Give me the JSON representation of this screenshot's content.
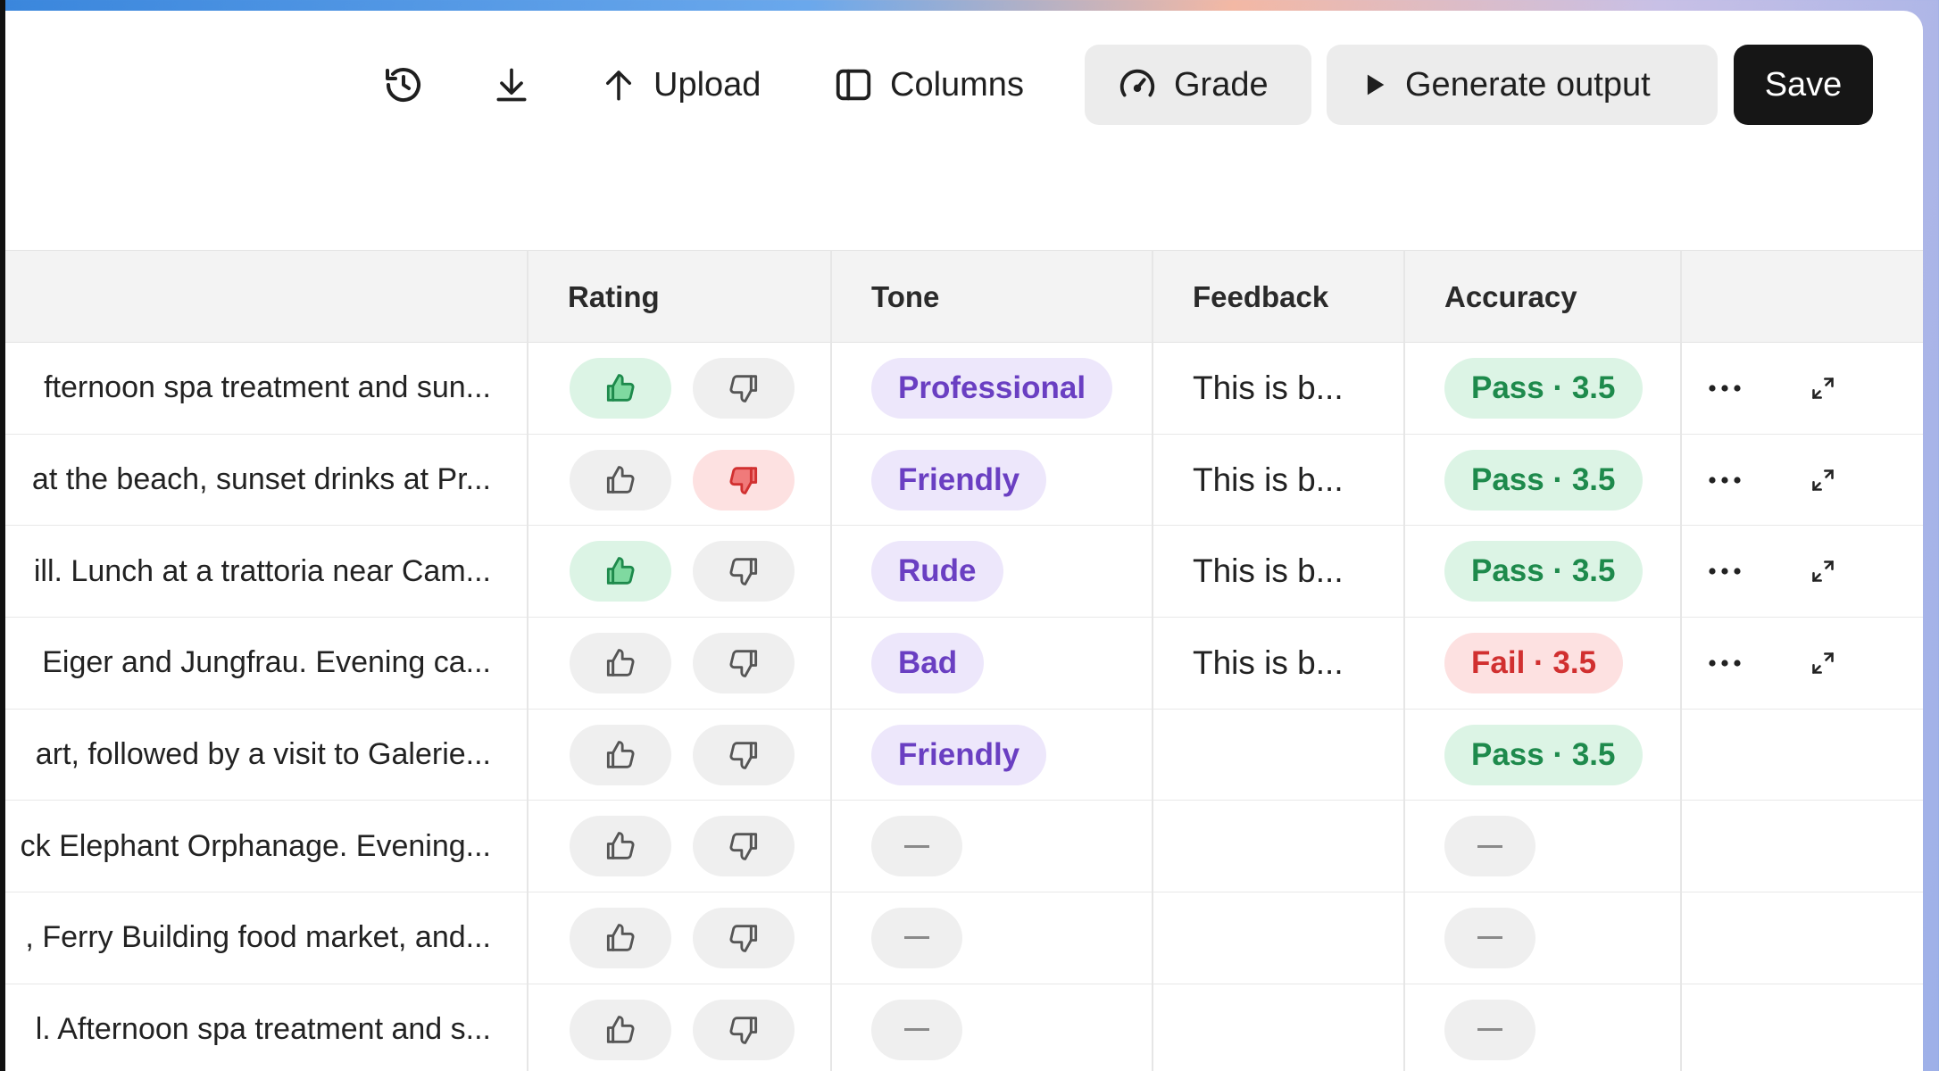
{
  "toolbar": {
    "history_icon": "history-icon",
    "download_icon": "download-icon",
    "upload_label": "Upload",
    "columns_label": "Columns",
    "grade_label": "Grade",
    "generate_label": "Generate output",
    "save_label": "Save"
  },
  "table": {
    "headers": {
      "rating": "Rating",
      "tone": "Tone",
      "feedback": "Feedback",
      "accuracy": "Accuracy"
    },
    "rows": [
      {
        "description": "fternoon spa treatment and sun...",
        "rating": "up",
        "tone": "Professional",
        "feedback": "This is b...",
        "accuracy": "Pass · 3.5",
        "accuracy_status": "pass",
        "actions": true
      },
      {
        "description": "at the beach, sunset drinks at Pr...",
        "rating": "down",
        "tone": "Friendly",
        "feedback": "This is b...",
        "accuracy": "Pass · 3.5",
        "accuracy_status": "pass",
        "actions": true
      },
      {
        "description": "ill. Lunch at a trattoria near Cam...",
        "rating": "up",
        "tone": "Rude",
        "feedback": "This is b...",
        "accuracy": "Pass · 3.5",
        "accuracy_status": "pass",
        "actions": true
      },
      {
        "description": " Eiger and Jungfrau. Evening ca...",
        "rating": "none",
        "tone": "Bad",
        "feedback": "This is b...",
        "accuracy": "Fail · 3.5",
        "accuracy_status": "fail",
        "actions": true
      },
      {
        "description": "art, followed by a visit to Galerie...",
        "rating": "none",
        "tone": "Friendly",
        "feedback": "",
        "accuracy": "Pass · 3.5",
        "accuracy_status": "pass",
        "actions": false
      },
      {
        "description": "ck Elephant Orphanage. Evening...",
        "rating": "none",
        "tone": "",
        "feedback": "",
        "accuracy": "",
        "accuracy_status": "empty",
        "actions": false
      },
      {
        "description": ", Ferry Building food market, and...",
        "rating": "none",
        "tone": "",
        "feedback": "",
        "accuracy": "",
        "accuracy_status": "empty",
        "actions": false
      },
      {
        "description": "l. Afternoon spa treatment and s...",
        "rating": "none",
        "tone": "",
        "feedback": "",
        "accuracy": "",
        "accuracy_status": "empty",
        "actions": false
      }
    ]
  },
  "colors": {
    "pass_bg": "#dcf4e5",
    "pass_text": "#1e8a4c",
    "fail_bg": "#fde1e1",
    "fail_text": "#d13030",
    "tone_bg": "#ede7fb",
    "tone_text": "#6a3fc2",
    "save_bg": "#161616"
  }
}
